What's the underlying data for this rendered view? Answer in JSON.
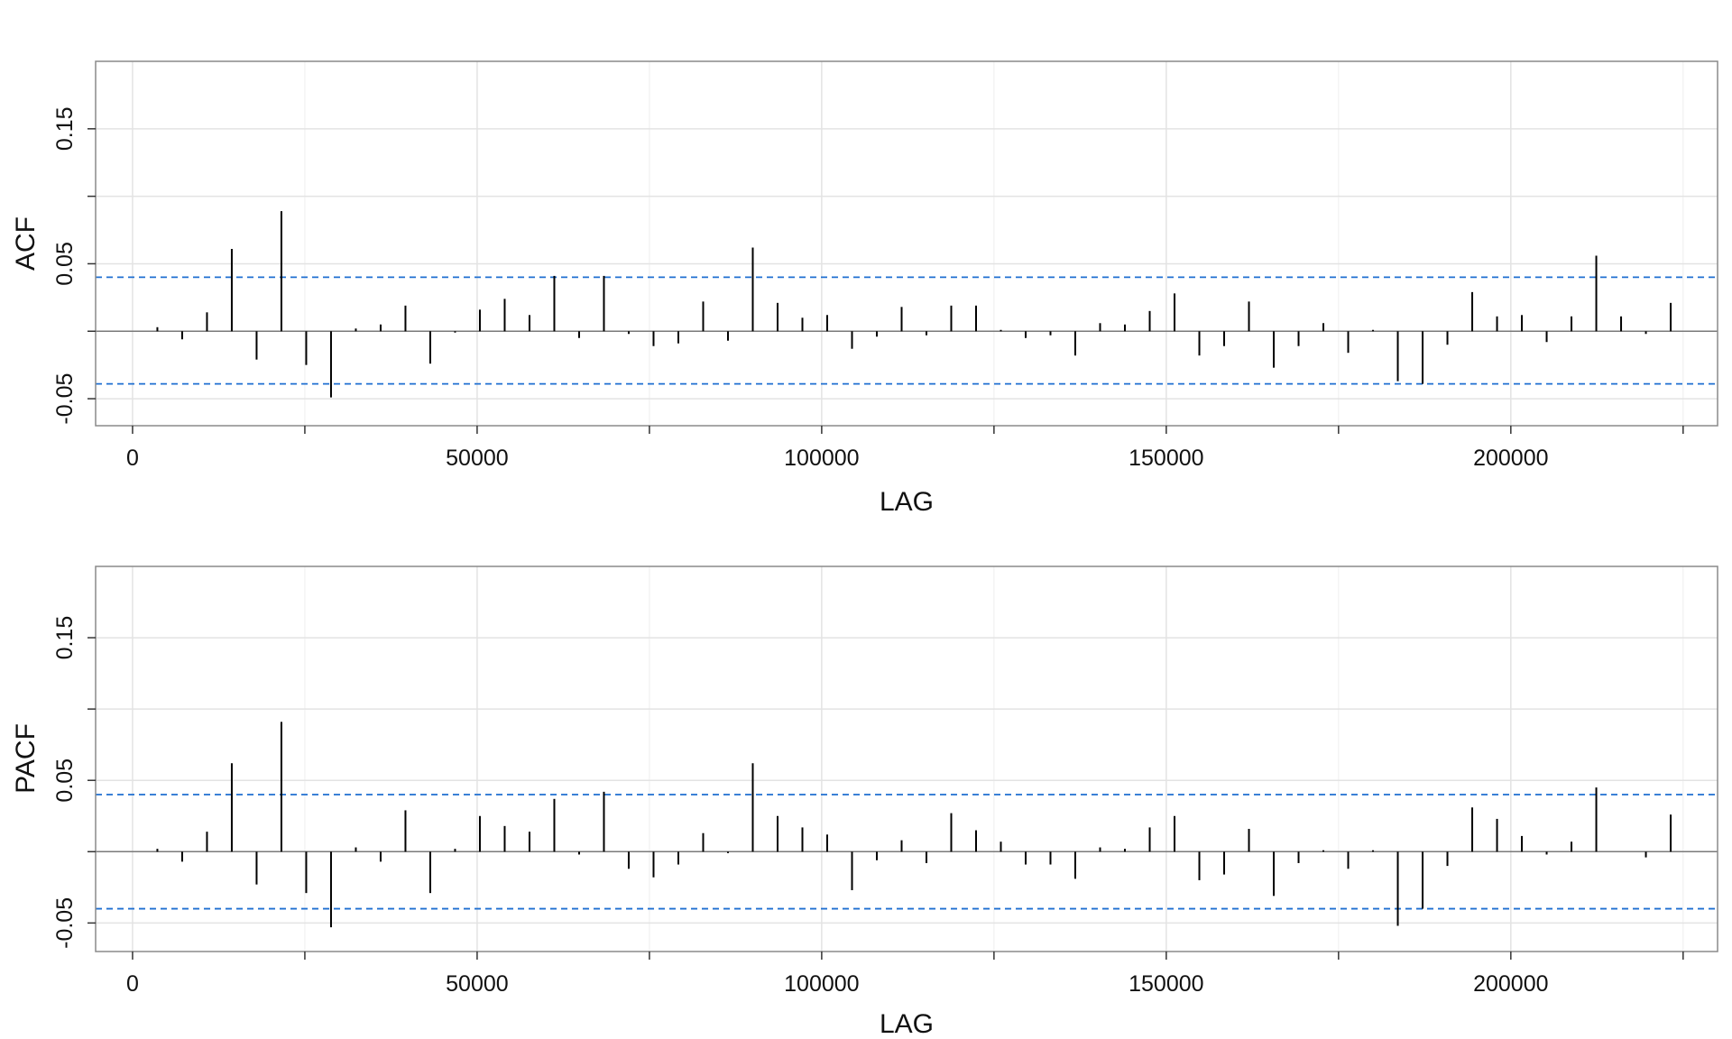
{
  "chart_data": [
    {
      "type": "bar",
      "xlabel": "LAG",
      "ylabel": "ACF",
      "xlim": [
        -5360,
        230000
      ],
      "ylim": [
        -0.07,
        0.2
      ],
      "xticks": [
        0,
        50000,
        100000,
        150000,
        200000
      ],
      "xtick_labels": [
        "0",
        "50000",
        "100000",
        "150000",
        "200000"
      ],
      "yticks": [
        -0.05,
        0.05,
        0.15
      ],
      "ytick_labels": [
        "-0.05",
        "0.05",
        "0.15"
      ],
      "minor_yticks": [
        0,
        0.1
      ],
      "grid": true,
      "significance_bounds": [
        0.04,
        -0.039
      ],
      "x": [
        3600,
        7200,
        10800,
        14400,
        18000,
        21600,
        25200,
        28800,
        32400,
        36000,
        39600,
        43200,
        46800,
        50400,
        54000,
        57600,
        61200,
        64800,
        68400,
        72000,
        75600,
        79200,
        82800,
        86400,
        90000,
        93600,
        97200,
        100800,
        104400,
        108000,
        111600,
        115200,
        118800,
        122400,
        126000,
        129600,
        133200,
        136800,
        140400,
        144000,
        147600,
        151200,
        154800,
        158400,
        162000,
        165600,
        169200,
        172800,
        176400,
        180000,
        183600,
        187200,
        190800,
        194400,
        198000,
        201600,
        205200,
        208800,
        212400,
        216000,
        219600,
        223200
      ],
      "values": [
        0.003,
        -0.006,
        0.014,
        0.061,
        -0.021,
        0.089,
        -0.025,
        -0.049,
        0.002,
        0.005,
        0.019,
        -0.024,
        -0.001,
        0.016,
        0.024,
        0.012,
        0.041,
        -0.005,
        0.041,
        -0.002,
        -0.011,
        -0.009,
        0.022,
        -0.007,
        0.062,
        0.021,
        0.01,
        0.012,
        -0.013,
        -0.004,
        0.018,
        -0.003,
        0.019,
        0.019,
        0.001,
        -0.005,
        -0.003,
        -0.018,
        0.006,
        0.005,
        0.015,
        0.028,
        -0.018,
        -0.011,
        0.022,
        -0.027,
        -0.011,
        0.006,
        -0.016,
        0.001,
        -0.037,
        -0.039,
        -0.01,
        0.029,
        0.011,
        0.012,
        -0.008,
        0.011,
        0.056,
        0.011,
        -0.002,
        0.021
      ]
    },
    {
      "type": "bar",
      "xlabel": "LAG",
      "ylabel": "PACF",
      "xlim": [
        -5360,
        230000
      ],
      "ylim": [
        -0.07,
        0.2
      ],
      "xticks": [
        0,
        50000,
        100000,
        150000,
        200000
      ],
      "xtick_labels": [
        "0",
        "50000",
        "100000",
        "150000",
        "200000"
      ],
      "yticks": [
        -0.05,
        0.05,
        0.15
      ],
      "ytick_labels": [
        "-0.05",
        "0.05",
        "0.15"
      ],
      "minor_yticks": [
        0,
        0.1
      ],
      "grid": true,
      "significance_bounds": [
        0.04,
        -0.04
      ],
      "x": [
        3600,
        7200,
        10800,
        14400,
        18000,
        21600,
        25200,
        28800,
        32400,
        36000,
        39600,
        43200,
        46800,
        50400,
        54000,
        57600,
        61200,
        64800,
        68400,
        72000,
        75600,
        79200,
        82800,
        86400,
        90000,
        93600,
        97200,
        100800,
        104400,
        108000,
        111600,
        115200,
        118800,
        122400,
        126000,
        129600,
        133200,
        136800,
        140400,
        144000,
        147600,
        151200,
        154800,
        158400,
        162000,
        165600,
        169200,
        172800,
        176400,
        180000,
        183600,
        187200,
        190800,
        194400,
        198000,
        201600,
        205200,
        208800,
        212400,
        216000,
        219600,
        223200
      ],
      "values": [
        0.002,
        -0.007,
        0.014,
        0.062,
        -0.023,
        0.091,
        -0.029,
        -0.053,
        0.003,
        -0.007,
        0.029,
        -0.029,
        0.002,
        0.025,
        0.018,
        0.014,
        0.037,
        -0.002,
        0.042,
        -0.012,
        -0.018,
        -0.009,
        0.013,
        -0.001,
        0.062,
        0.025,
        0.017,
        0.012,
        -0.027,
        -0.006,
        0.008,
        -0.008,
        0.027,
        0.015,
        0.007,
        -0.009,
        -0.009,
        -0.019,
        0.003,
        0.002,
        0.017,
        0.025,
        -0.02,
        -0.016,
        0.016,
        -0.031,
        -0.008,
        0.001,
        -0.012,
        0.001,
        -0.052,
        -0.04,
        -0.01,
        0.031,
        0.023,
        0.011,
        -0.002,
        0.007,
        0.045,
        0.0,
        -0.004,
        0.026
      ]
    }
  ]
}
